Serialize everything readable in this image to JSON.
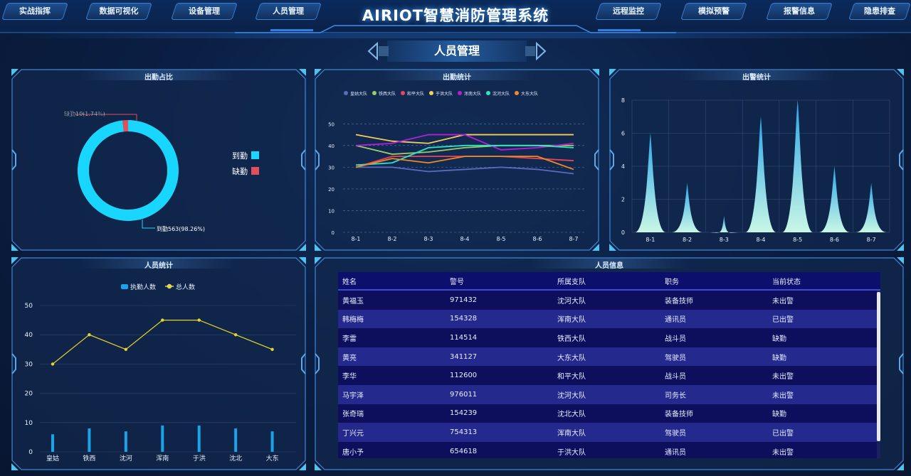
{
  "nav": {
    "left_tabs": [
      "实战指挥",
      "数据可视化",
      "设备管理",
      "人员管理"
    ],
    "right_tabs": [
      "远程监控",
      "模拟预警",
      "报警信息",
      "隐患排查"
    ],
    "title": "AIRIOT智慧消防管理系统"
  },
  "page": {
    "title": "人员管理"
  },
  "panels": {
    "attendance_ratio": {
      "title": "出勤占比",
      "chart_data": {
        "type": "pie",
        "labels": [
          "到勤",
          "缺勤"
        ],
        "values": [
          98.26,
          1.74
        ],
        "slice_labels": [
          "到勤563(98.26%)",
          "缺勤10(1.74%)"
        ],
        "colors": [
          "#19d6ff",
          "#e0505a"
        ],
        "legend_position": "right"
      }
    },
    "attendance_stats": {
      "title": "出勤统计",
      "chart_data": {
        "type": "line",
        "x": [
          "8-1",
          "8-2",
          "8-3",
          "8-4",
          "8-5",
          "8-6",
          "8-7"
        ],
        "yticks": [
          "0",
          "10",
          "20",
          "30",
          "40",
          "50"
        ],
        "ylim": [
          0,
          55
        ],
        "series": [
          {
            "name": "皇姑大队",
            "color": "#5c6bc0",
            "values": [
              30,
              30,
              28,
              29,
              30,
              29,
              27
            ]
          },
          {
            "name": "铁西大队",
            "color": "#9ccc65",
            "values": [
              40,
              36,
              37,
              39,
              40,
              40,
              40
            ]
          },
          {
            "name": "和平大队",
            "color": "#e8445a",
            "values": [
              30,
              35,
              35,
              35,
              35,
              34,
              33
            ]
          },
          {
            "name": "于洪大队",
            "color": "#f6cf5a",
            "values": [
              45,
              42,
              41,
              45,
              45,
              45,
              45
            ]
          },
          {
            "name": "浑南大队",
            "color": "#b51fd8",
            "values": [
              40,
              41,
              45,
              45,
              38,
              39,
              41
            ]
          },
          {
            "name": "沈河大队",
            "color": "#2ee6c0",
            "values": [
              31,
              32,
              39,
              40,
              40,
              40,
              39
            ]
          },
          {
            "name": "大东大队",
            "color": "#f08a24",
            "values": [
              30,
              34,
              32,
              35,
              35,
              35,
              29
            ]
          }
        ],
        "grid": true,
        "legend_position": "top"
      }
    },
    "dispatch_stats": {
      "title": "出警统计",
      "chart_data": {
        "type": "area",
        "categories": [
          "8-1",
          "8-2",
          "8-3",
          "8-4",
          "8-5",
          "8-6",
          "8-7"
        ],
        "values": [
          6,
          3,
          1,
          7,
          8,
          4,
          3
        ],
        "yticks": [
          "0",
          "2",
          "4",
          "6",
          "8"
        ],
        "ylim": [
          0,
          8
        ],
        "grid": true
      }
    },
    "personnel_stats": {
      "title": "人员统计",
      "chart_data": {
        "type": "bar",
        "categories": [
          "皇姑",
          "铁西",
          "沈河",
          "浑南",
          "于洪",
          "沈北",
          "大东"
        ],
        "yticks": [
          "0",
          "10",
          "20",
          "30",
          "40",
          "50"
        ],
        "ylim": [
          0,
          50
        ],
        "series": [
          {
            "name": "执勤人数",
            "type": "bar",
            "color": "#1aa3e8",
            "values": [
              6,
              8,
              7,
              9,
              9,
              8,
              7
            ]
          },
          {
            "name": "总人数",
            "type": "line",
            "color": "#e8d32a",
            "values": [
              30,
              40,
              35,
              45,
              45,
              40,
              35
            ]
          }
        ],
        "grid": true,
        "legend_position": "top"
      }
    },
    "personnel_info": {
      "title": "人员信息",
      "columns": [
        "姓名",
        "警号",
        "所属支队",
        "职务",
        "当前状态"
      ],
      "rows": [
        [
          "黄福玉",
          "971432",
          "沈河大队",
          "装备技师",
          "未出警"
        ],
        [
          "韩梅梅",
          "154328",
          "浑南大队",
          "通讯员",
          "已出警"
        ],
        [
          "李雷",
          "114514",
          "铁西大队",
          "战斗员",
          "缺勤"
        ],
        [
          "黄亮",
          "341127",
          "大东大队",
          "驾驶员",
          "缺勤"
        ],
        [
          "李华",
          "112600",
          "和平大队",
          "战斗员",
          "未出警"
        ],
        [
          "马宇泽",
          "976011",
          "沈河大队",
          "司务长",
          "未出警"
        ],
        [
          "张奇瑞",
          "154239",
          "沈北大队",
          "装备技师",
          "缺勤"
        ],
        [
          "丁兴元",
          "754313",
          "浑南大队",
          "驾驶员",
          "已出警"
        ],
        [
          "唐小予",
          "654618",
          "于洪大队",
          "通讯员",
          "未出警"
        ]
      ]
    }
  }
}
